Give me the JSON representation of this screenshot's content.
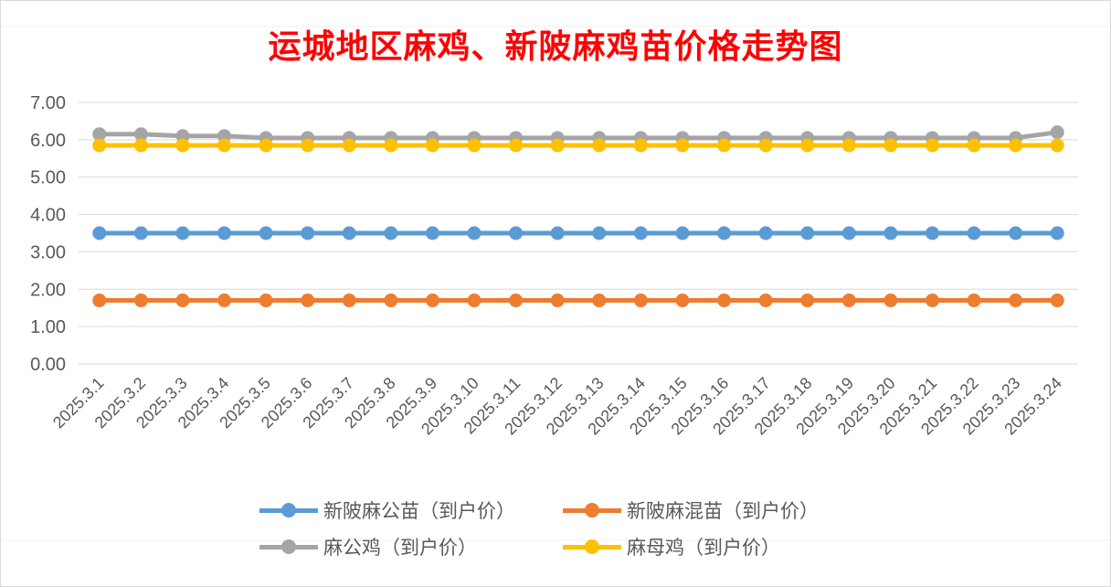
{
  "chart_data": {
    "type": "line",
    "title": "运城地区麻鸡、新陂麻鸡苗价格走势图",
    "xlabel": "",
    "ylabel": "",
    "ylim": [
      0,
      7
    ],
    "yticks": [
      "0.00",
      "1.00",
      "2.00",
      "3.00",
      "4.00",
      "5.00",
      "6.00",
      "7.00"
    ],
    "grid": true,
    "legend_position": "bottom",
    "categories": [
      "2025.3.1",
      "2025.3.2",
      "2025.3.3",
      "2025.3.4",
      "2025.3.5",
      "2025.3.6",
      "2025.3.7",
      "2025.3.8",
      "2025.3.9",
      "2025.3.10",
      "2025.3.11",
      "2025.3.12",
      "2025.3.13",
      "2025.3.14",
      "2025.3.15",
      "2025.3.16",
      "2025.3.17",
      "2025.3.18",
      "2025.3.19",
      "2025.3.20",
      "2025.3.21",
      "2025.3.22",
      "2025.3.23",
      "2025.3.24"
    ],
    "series": [
      {
        "name": "新陂麻公苗（到户价）",
        "color": "#5b9bd5",
        "values": [
          3.5,
          3.5,
          3.5,
          3.5,
          3.5,
          3.5,
          3.5,
          3.5,
          3.5,
          3.5,
          3.5,
          3.5,
          3.5,
          3.5,
          3.5,
          3.5,
          3.5,
          3.5,
          3.5,
          3.5,
          3.5,
          3.5,
          3.5,
          3.5
        ]
      },
      {
        "name": "新陂麻混苗（到户价）",
        "color": "#ed7d31",
        "values": [
          1.7,
          1.7,
          1.7,
          1.7,
          1.7,
          1.7,
          1.7,
          1.7,
          1.7,
          1.7,
          1.7,
          1.7,
          1.7,
          1.7,
          1.7,
          1.7,
          1.7,
          1.7,
          1.7,
          1.7,
          1.7,
          1.7,
          1.7,
          1.7
        ]
      },
      {
        "name": "麻公鸡（到户价）",
        "color": "#a5a5a5",
        "values": [
          6.15,
          6.15,
          6.1,
          6.1,
          6.05,
          6.05,
          6.05,
          6.05,
          6.05,
          6.05,
          6.05,
          6.05,
          6.05,
          6.05,
          6.05,
          6.05,
          6.05,
          6.05,
          6.05,
          6.05,
          6.05,
          6.05,
          6.05,
          6.2
        ]
      },
      {
        "name": "麻母鸡（到户价）",
        "color": "#ffc000",
        "values": [
          5.85,
          5.85,
          5.85,
          5.85,
          5.85,
          5.85,
          5.85,
          5.85,
          5.85,
          5.85,
          5.85,
          5.85,
          5.85,
          5.85,
          5.85,
          5.85,
          5.85,
          5.85,
          5.85,
          5.85,
          5.85,
          5.85,
          5.85,
          5.85
        ]
      }
    ]
  }
}
